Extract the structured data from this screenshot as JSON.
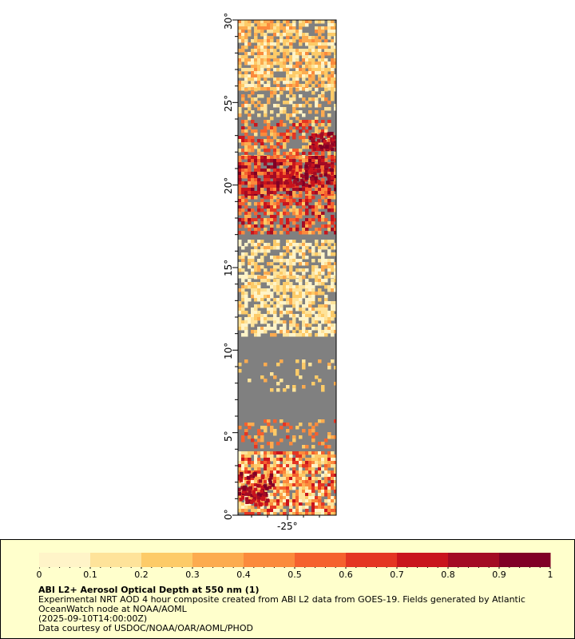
{
  "map": {
    "lat_ticks": [
      "30°",
      "25°",
      "20°",
      "15°",
      "10°",
      "5°",
      "0°"
    ],
    "lon_ticks": [
      "-25°"
    ],
    "lat_range": [
      0,
      30
    ],
    "lon_center": -25,
    "land_color": "#808080"
  },
  "colorbar": {
    "ticks": [
      "0",
      "0.1",
      "0.2",
      "0.3",
      "0.4",
      "0.5",
      "0.6",
      "0.7",
      "0.8",
      "0.9",
      "1"
    ],
    "range": [
      0,
      1
    ],
    "colors": [
      "#fff4c8",
      "#fee39a",
      "#fdcb68",
      "#fcab4f",
      "#fb8a3c",
      "#f5612e",
      "#e43523",
      "#c9141d",
      "#a30b24",
      "#800026"
    ]
  },
  "legend": {
    "title": "ABI L2+ Aerosol Optical Depth at 550 nm (1)",
    "line1": "Experimental NRT AOD 4 hour composite created from ABI L2 data from GOES-19. Fields generated by Atlantic OceanWatch node at NOAA/AOML",
    "line2": "(2025-09-10T14:00:00Z)",
    "line3": "Data courtesy of USDOC/NOAA/OAR/AOML/PHOD"
  }
}
